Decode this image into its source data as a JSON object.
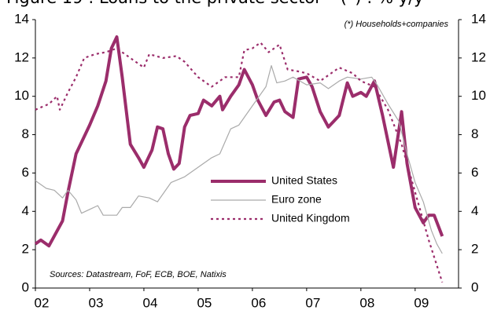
{
  "chart_data": {
    "type": "line",
    "title": "Figure 19 : Loans to the private sector – (*) : % y/y",
    "annotations": [
      "(*) Households+companies",
      "Sources: Datastream, FoF, ECB, BOE, Natixis"
    ],
    "xlim": [
      2002,
      2009.8
    ],
    "xticks": [
      {
        "value": 2002,
        "label": "02"
      },
      {
        "value": 2003,
        "label": "03"
      },
      {
        "value": 2004,
        "label": "04"
      },
      {
        "value": 2005,
        "label": "05"
      },
      {
        "value": 2006,
        "label": "06"
      },
      {
        "value": 2007,
        "label": "07"
      },
      {
        "value": 2008,
        "label": "08"
      },
      {
        "value": 2009,
        "label": "09"
      }
    ],
    "ylim": [
      0,
      14
    ],
    "yticks": [
      0,
      2,
      4,
      6,
      8,
      10,
      12,
      14
    ],
    "y2lim": [
      0,
      14
    ],
    "y2ticks": [
      0,
      2,
      4,
      6,
      8,
      10,
      12,
      14
    ],
    "grid": false,
    "legend": "center",
    "series": [
      {
        "name": "United States",
        "color": "#9b2d6b",
        "style": "solid-thick",
        "x": [
          2002.0,
          2002.1,
          2002.25,
          2002.5,
          2002.6,
          2002.75,
          2003.0,
          2003.15,
          2003.3,
          2003.4,
          2003.5,
          2003.6,
          2003.75,
          2003.9,
          2004.0,
          2004.15,
          2004.25,
          2004.35,
          2004.45,
          2004.55,
          2004.65,
          2004.75,
          2004.85,
          2005.0,
          2005.1,
          2005.25,
          2005.4,
          2005.45,
          2005.6,
          2005.75,
          2005.85,
          2006.0,
          2006.1,
          2006.25,
          2006.4,
          2006.5,
          2006.6,
          2006.75,
          2006.85,
          2007.0,
          2007.1,
          2007.25,
          2007.4,
          2007.5,
          2007.6,
          2007.75,
          2007.85,
          2008.0,
          2008.1,
          2008.25,
          2008.4,
          2008.6,
          2008.75,
          2008.85,
          2009.0,
          2009.15,
          2009.25,
          2009.35,
          2009.5
        ],
        "values": [
          2.3,
          2.5,
          2.2,
          3.5,
          5.0,
          7.0,
          8.5,
          9.5,
          10.8,
          12.5,
          13.1,
          11.0,
          7.5,
          6.8,
          6.3,
          7.2,
          8.4,
          8.3,
          7.0,
          6.2,
          6.5,
          8.4,
          9.0,
          9.1,
          9.8,
          9.5,
          10.0,
          9.3,
          10.0,
          10.6,
          11.4,
          10.6,
          9.8,
          9.0,
          9.7,
          9.8,
          9.2,
          8.9,
          10.9,
          11.0,
          10.5,
          9.2,
          8.4,
          8.7,
          9.0,
          10.7,
          10.0,
          10.2,
          10.0,
          10.8,
          9.0,
          6.3,
          9.2,
          6.5,
          4.2,
          3.4,
          3.8,
          3.8,
          2.7
        ]
      },
      {
        "name": "Euro zone",
        "color": "#aaaaaa",
        "style": "solid-thin",
        "x": [
          2002.0,
          2002.2,
          2002.35,
          2002.5,
          2002.6,
          2002.75,
          2002.85,
          2003.0,
          2003.15,
          2003.25,
          2003.5,
          2003.6,
          2003.75,
          2003.9,
          2004.1,
          2004.25,
          2004.5,
          2004.75,
          2005.0,
          2005.25,
          2005.4,
          2005.6,
          2005.75,
          2006.0,
          2006.25,
          2006.35,
          2006.45,
          2006.6,
          2006.75,
          2007.0,
          2007.25,
          2007.4,
          2007.6,
          2007.75,
          2008.0,
          2008.2,
          2008.3,
          2008.5,
          2008.7,
          2008.85,
          2009.0,
          2009.15,
          2009.3,
          2009.4,
          2009.5
        ],
        "values": [
          5.6,
          5.2,
          5.1,
          4.7,
          5.1,
          4.6,
          3.9,
          4.1,
          4.3,
          3.8,
          3.8,
          4.2,
          4.2,
          4.8,
          4.7,
          4.5,
          5.5,
          5.8,
          6.3,
          6.8,
          7.0,
          8.3,
          8.5,
          9.5,
          10.5,
          11.6,
          10.7,
          10.8,
          11.0,
          10.6,
          10.7,
          10.4,
          10.8,
          11.0,
          10.9,
          11.0,
          10.6,
          9.6,
          8.7,
          7.0,
          5.5,
          4.5,
          3.0,
          2.3,
          1.8
        ]
      },
      {
        "name": "United Kingdom",
        "color": "#9b2d6b",
        "style": "dotted",
        "x": [
          2002.0,
          2002.25,
          2002.4,
          2002.45,
          2002.6,
          2002.75,
          2002.9,
          2003.1,
          2003.3,
          2003.5,
          2003.75,
          2004.0,
          2004.1,
          2004.35,
          2004.6,
          2004.75,
          2005.0,
          2005.25,
          2005.5,
          2005.75,
          2005.85,
          2006.0,
          2006.15,
          2006.3,
          2006.5,
          2006.65,
          2006.85,
          2007.0,
          2007.25,
          2007.6,
          2007.85,
          2008.0,
          2008.25,
          2008.5,
          2008.75,
          2009.0,
          2009.25,
          2009.5
        ],
        "values": [
          9.3,
          9.6,
          10.0,
          9.3,
          10.2,
          11.0,
          12.0,
          12.2,
          12.3,
          12.5,
          12.0,
          11.5,
          12.2,
          12.0,
          12.1,
          11.8,
          11.0,
          10.5,
          11.0,
          11.0,
          12.4,
          12.5,
          12.8,
          12.3,
          12.7,
          11.4,
          11.3,
          11.2,
          10.8,
          11.5,
          11.2,
          10.8,
          10.5,
          9.3,
          7.5,
          5.0,
          2.5,
          0.3
        ]
      }
    ]
  }
}
